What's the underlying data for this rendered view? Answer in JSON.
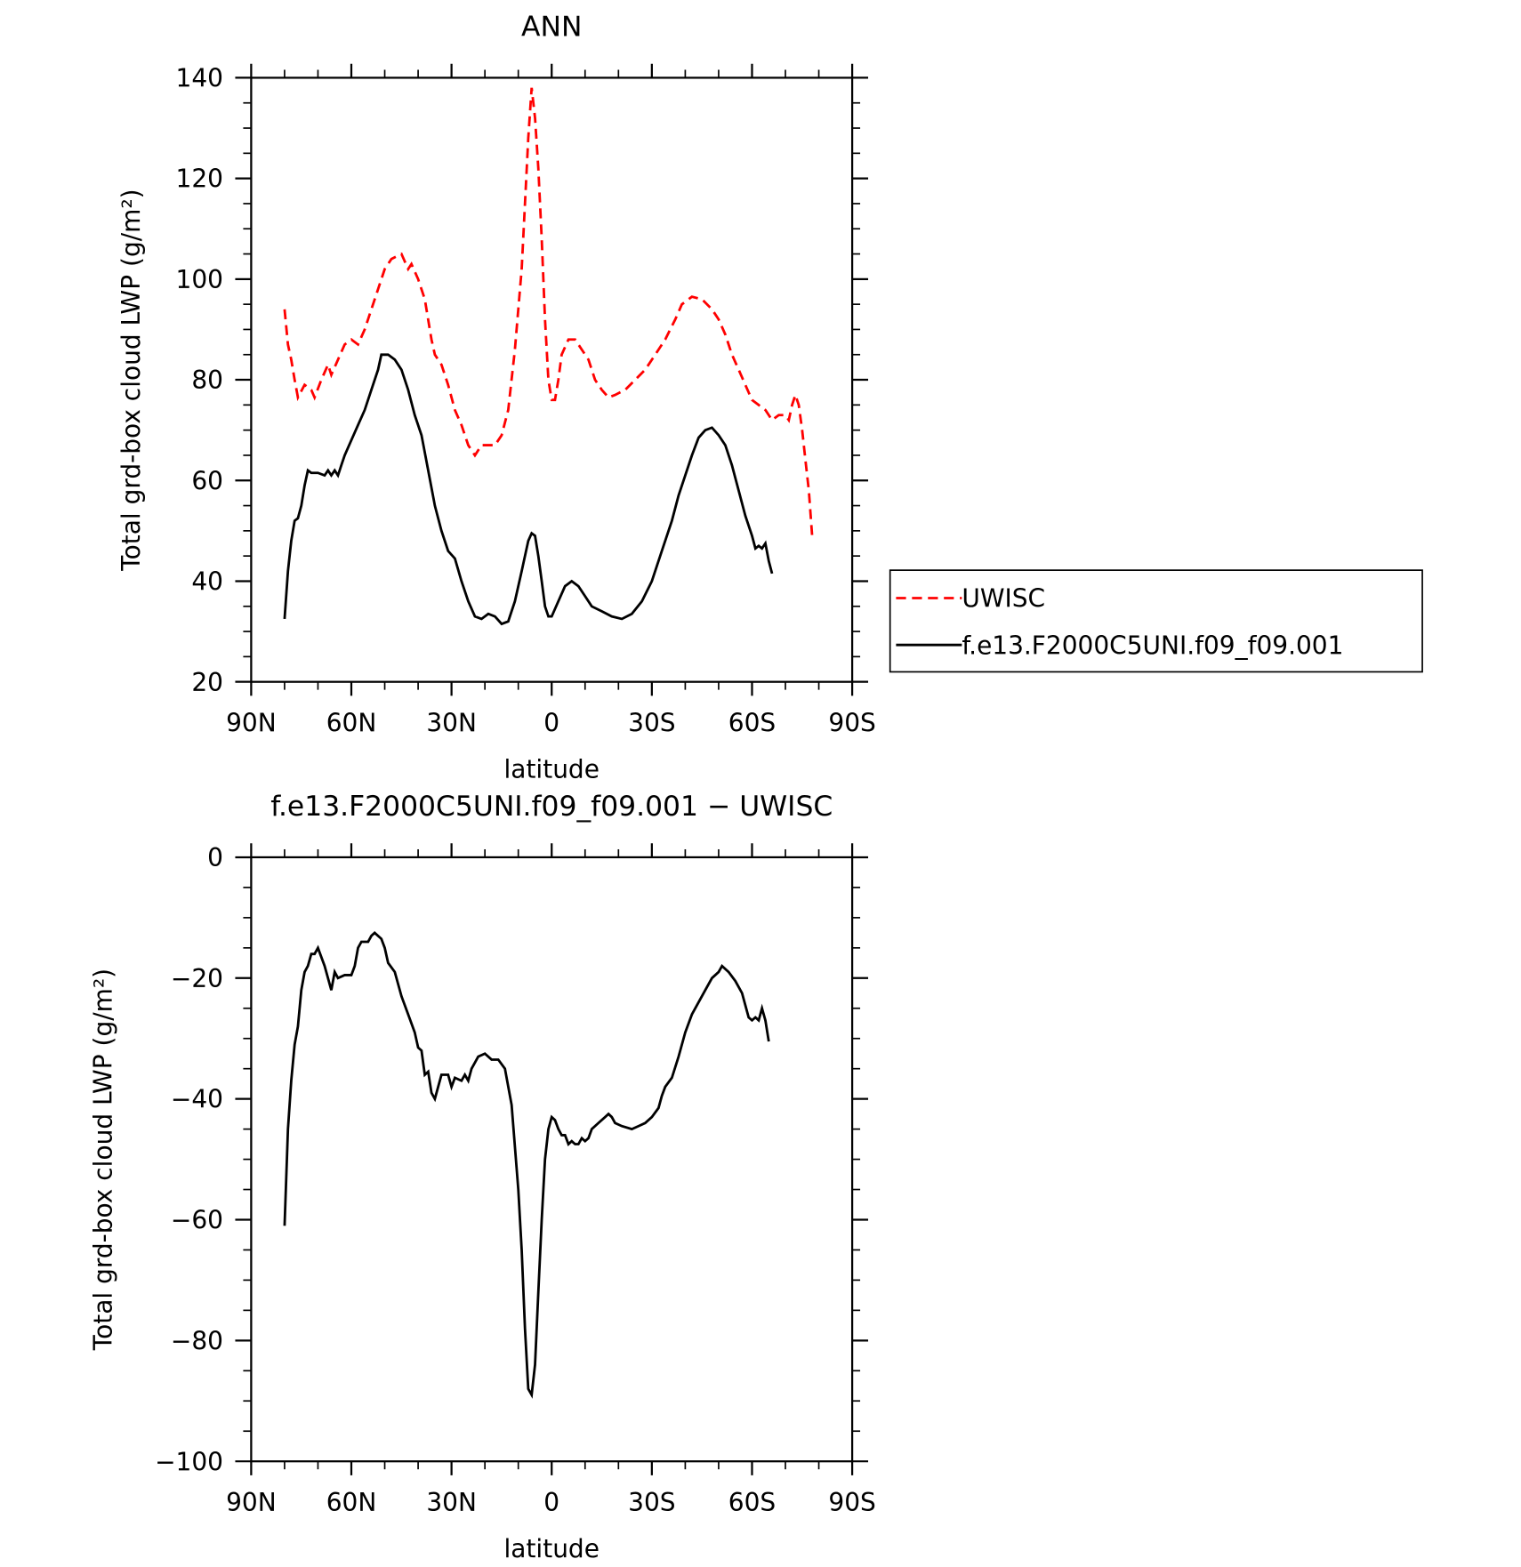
{
  "chart_data": [
    {
      "type": "line",
      "title": "ANN",
      "x_label": "latitude",
      "y_label": "Total grd-box cloud LWP (g/m²)",
      "xlim": [
        90,
        -90
      ],
      "xticks": [
        {
          "value": 90,
          "label": "90N"
        },
        {
          "value": 60,
          "label": "60N"
        },
        {
          "value": 30,
          "label": "30N"
        },
        0,
        {
          "value": -30,
          "label": "30S"
        },
        {
          "value": -60,
          "label": "60S"
        },
        {
          "value": -90,
          "label": "90S"
        }
      ],
      "ylim": [
        20,
        140
      ],
      "yticks": [
        20,
        40,
        60,
        80,
        100,
        120,
        140
      ],
      "legend": "outside-right",
      "series": [
        {
          "name": "UWISC",
          "color": "#ff0000",
          "dashed": true,
          "x": [
            80,
            79,
            78,
            77,
            76,
            74,
            72,
            71,
            69,
            67,
            66,
            64,
            62,
            60,
            58,
            56,
            54,
            52,
            50,
            48,
            45,
            43,
            42,
            40,
            38,
            36,
            35,
            33,
            31,
            29,
            27,
            25,
            23,
            21,
            19,
            17,
            15,
            13,
            11,
            9,
            8,
            7,
            6,
            5,
            4,
            3,
            2,
            1,
            0,
            -1,
            -2,
            -3,
            -5,
            -7,
            -9,
            -11,
            -13,
            -15,
            -17,
            -19,
            -22,
            -25,
            -28,
            -31,
            -34,
            -37,
            -39,
            -42,
            -45,
            -48,
            -50,
            -52,
            -54,
            -56,
            -58,
            -60,
            -62,
            -64,
            -66,
            -68,
            -70,
            -71,
            -72,
            -73,
            -74,
            -75,
            -76,
            -77,
            -78
          ],
          "values": [
            94,
            87,
            84,
            80,
            76.5,
            79,
            78,
            76.5,
            80,
            83,
            81,
            84,
            87,
            88,
            87,
            90,
            94,
            98,
            102,
            104,
            105,
            102,
            103,
            100,
            96,
            88,
            85,
            83,
            79,
            74,
            71,
            67,
            65,
            67,
            67,
            67,
            69,
            74,
            86,
            102,
            115,
            128,
            138,
            132,
            122,
            108,
            92,
            80,
            76,
            76,
            80,
            85,
            88,
            88,
            86,
            84,
            80,
            78,
            76.5,
            77,
            78,
            80,
            82,
            85,
            88,
            92,
            95,
            96.5,
            96,
            94,
            92,
            89,
            85,
            82,
            79,
            76,
            75,
            74,
            72,
            73,
            73,
            72,
            75,
            77,
            75,
            70,
            64,
            58,
            49
          ]
        },
        {
          "name": "f.e13.F2000C5UNI.f09_f09.001",
          "color": "#000000",
          "dashed": false,
          "x": [
            80,
            79,
            78,
            77,
            76,
            75,
            74,
            73,
            72,
            70,
            68,
            67,
            66,
            65,
            64,
            63,
            62,
            60,
            58,
            56,
            54,
            52,
            51,
            49,
            47,
            45,
            43,
            41,
            39,
            37,
            35,
            33,
            31,
            29,
            27,
            25,
            23,
            21,
            19,
            17,
            15,
            13,
            11,
            9,
            7,
            6,
            5,
            4,
            3,
            2,
            1,
            0,
            -2,
            -4,
            -6,
            -8,
            -10,
            -12,
            -15,
            -18,
            -21,
            -24,
            -27,
            -30,
            -33,
            -36,
            -38,
            -40,
            -42,
            -44,
            -46,
            -48,
            -50,
            -52,
            -54,
            -56,
            -58,
            -60,
            -61,
            -62,
            -63,
            -64,
            -65,
            -66
          ],
          "values": [
            32.5,
            42,
            48,
            52,
            52.5,
            55,
            59,
            62,
            61.5,
            61.5,
            61,
            62,
            61,
            62,
            61,
            63,
            65,
            68,
            71,
            74,
            78,
            82,
            85,
            85,
            84,
            82,
            78,
            73,
            69,
            62,
            55,
            50,
            46,
            44.5,
            40,
            36,
            33,
            32.5,
            33.5,
            33,
            31.5,
            32,
            36,
            42,
            48,
            49.5,
            49,
            45,
            40,
            35,
            33,
            33,
            36,
            39,
            40,
            39,
            37,
            35,
            34,
            33,
            32.5,
            33.5,
            36,
            40,
            46,
            52,
            57,
            61,
            65,
            68.5,
            70,
            70.5,
            69,
            67,
            63,
            58,
            53,
            49,
            46.5,
            47,
            46.5,
            47.5,
            44,
            41.5
          ]
        }
      ]
    },
    {
      "type": "line",
      "title": "f.e13.F2000C5UNI.f09_f09.001 − UWISC",
      "x_label": "latitude",
      "y_label": "Total grd-box cloud LWP (g/m²)",
      "xlim": [
        90,
        -90
      ],
      "xticks": [
        {
          "value": 90,
          "label": "90N"
        },
        {
          "value": 60,
          "label": "60N"
        },
        {
          "value": 30,
          "label": "30N"
        },
        0,
        {
          "value": -30,
          "label": "30S"
        },
        {
          "value": -60,
          "label": "60S"
        },
        {
          "value": -90,
          "label": "90S"
        }
      ],
      "ylim": [
        -100,
        0
      ],
      "yticks": [
        {
          "value": -100,
          "label": "−100"
        },
        {
          "value": -80,
          "label": "−80"
        },
        {
          "value": -60,
          "label": "−60"
        },
        {
          "value": -40,
          "label": "−40"
        },
        {
          "value": -20,
          "label": "−20"
        },
        0
      ],
      "color": "#000000",
      "x": [
        80,
        79,
        78,
        77,
        76,
        75,
        74,
        73,
        72,
        71,
        70,
        68,
        66,
        65,
        64,
        62,
        60,
        59,
        58,
        57,
        55,
        54,
        53,
        51,
        50,
        49,
        47,
        45,
        43,
        41,
        40,
        39,
        38,
        37,
        36,
        35,
        33,
        31,
        30,
        29,
        27,
        26,
        25,
        24,
        23,
        22,
        20,
        18,
        16,
        14,
        12,
        10,
        9,
        8,
        7,
        6,
        5,
        4,
        3,
        2,
        1,
        0,
        -1,
        -2,
        -3,
        -4,
        -5,
        -6,
        -7,
        -8,
        -9,
        -10,
        -11,
        -12,
        -14,
        -16,
        -17,
        -18,
        -19,
        -21,
        -24,
        -26,
        -28,
        -30,
        -32,
        -33,
        -34,
        -36,
        -38,
        -40,
        -42,
        -44,
        -46,
        -48,
        -50,
        -51,
        -53,
        -55,
        -57,
        -58,
        -59,
        -60,
        -61,
        -62,
        -63,
        -64,
        -65
      ],
      "values": [
        -61,
        -45,
        -37,
        -31,
        -28,
        -22,
        -19,
        -18,
        -16,
        -16,
        -15,
        -18,
        -22,
        -19,
        -20,
        -19.5,
        -19.5,
        -18,
        -15,
        -14,
        -14,
        -13,
        -12.5,
        -13.5,
        -15,
        -17.5,
        -19,
        -23,
        -26,
        -29,
        -31.5,
        -32,
        -36,
        -35.5,
        -39,
        -40,
        -36,
        -36,
        -38,
        -36.5,
        -37,
        -36,
        -37,
        -35,
        -34,
        -33,
        -32.5,
        -33.5,
        -33.5,
        -35,
        -41,
        -55,
        -65,
        -78,
        -88,
        -89,
        -84,
        -72,
        -60,
        -50,
        -45,
        -43,
        -43.5,
        -45,
        -46,
        -46,
        -47.5,
        -47,
        -47.5,
        -47.5,
        -46.5,
        -47,
        -46.5,
        -45,
        -44,
        -43,
        -42.5,
        -43,
        -44,
        -44.5,
        -45,
        -44.5,
        -44,
        -43,
        -41.5,
        -39.5,
        -38,
        -36.5,
        -33,
        -29,
        -26,
        -24,
        -22,
        -20,
        -19,
        -18,
        -19,
        -20.5,
        -22.5,
        -24.5,
        -26.5,
        -27,
        -26.5,
        -27,
        -25,
        -27,
        -30.5
      ]
    }
  ]
}
